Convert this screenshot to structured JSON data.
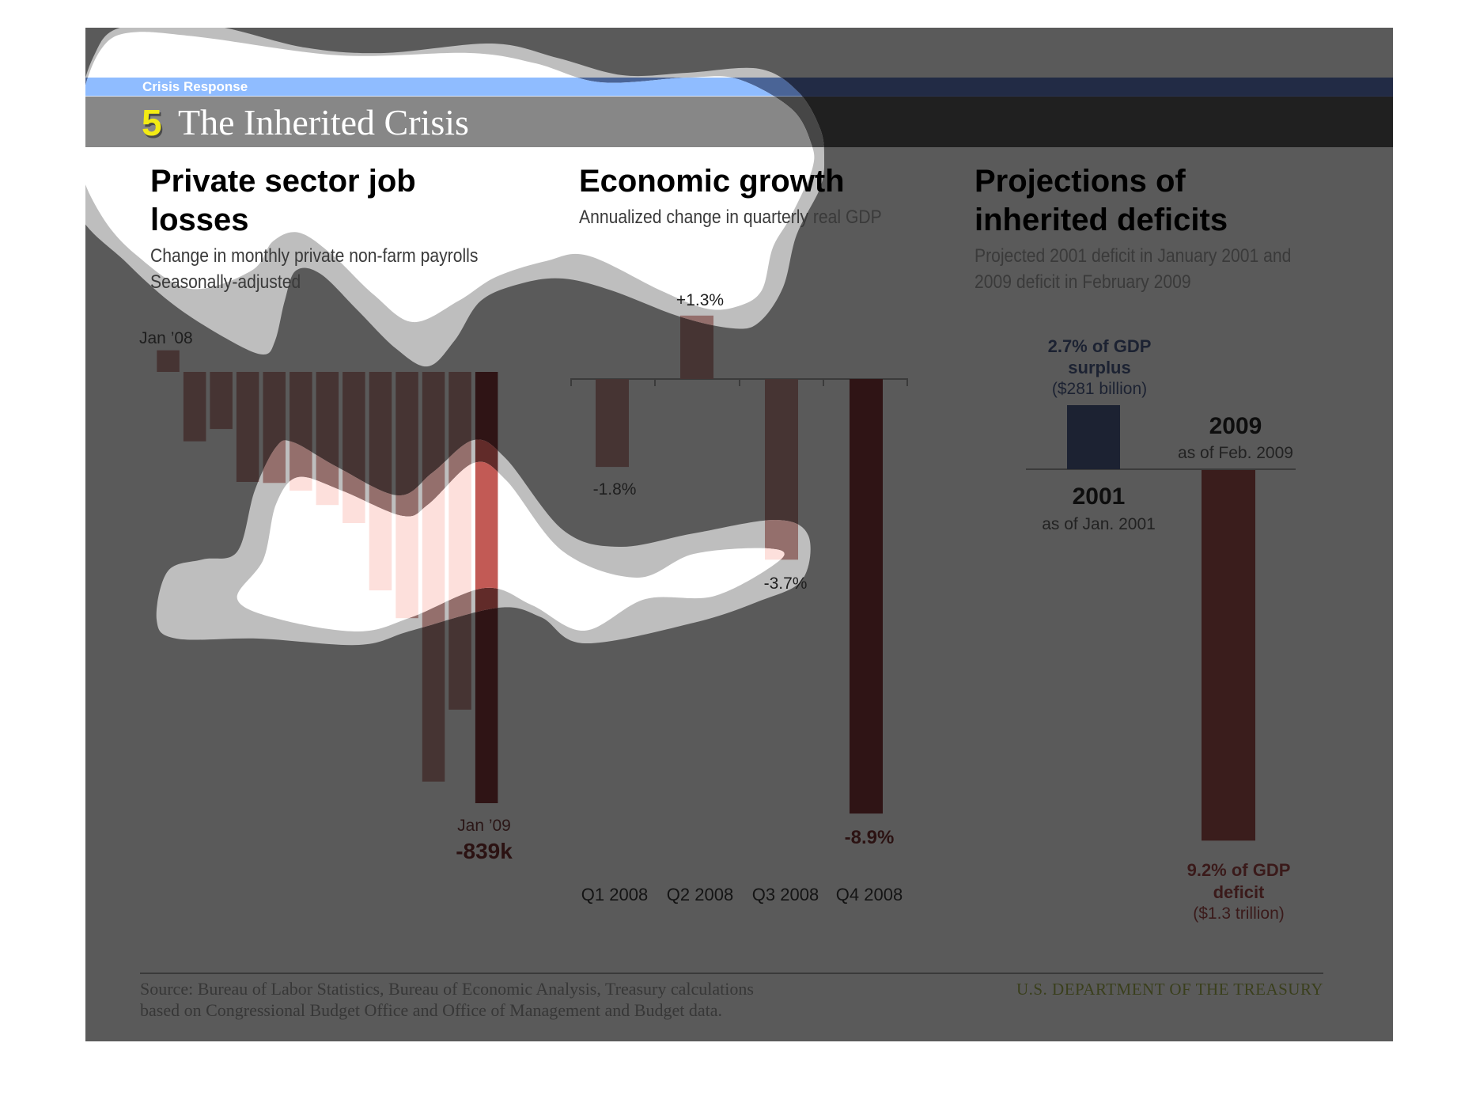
{
  "header": {
    "section_label": "Crisis Response",
    "slide_number": "5",
    "slide_title": "The Inherited Crisis"
  },
  "colors": {
    "panel": "#5a5a5a",
    "highlight": "#ffffff",
    "highlight_halo": "#bebebe",
    "section_band_bright": "#8fbcff",
    "section_band_dim": "#222b45",
    "title_band_dim": "#202020",
    "bar_dim": "#463433",
    "bar_final_dim": "#2f1415",
    "bar_bright": "#fde0dc",
    "bar_final_bright": "#c25a55",
    "surplus": "#1c2232",
    "deficit": "#3a1d1c",
    "number_accent": "#f3eb14"
  },
  "chart_data": [
    {
      "type": "bar",
      "title_lines": [
        "Private sector job",
        "losses"
      ],
      "subtitle_lines": [
        "Change in monthly private non-farm payrolls",
        "Seasonally-adjusted"
      ],
      "first_label": "Jan ’08",
      "last_label": "Jan ’09",
      "last_value_label": "-839k",
      "values": [
        42,
        -135,
        -111,
        -214,
        -216,
        -231,
        -259,
        -294,
        -425,
        -479,
        -797,
        -657,
        -839
      ],
      "highlight_index": 12,
      "grid": false
    },
    {
      "type": "bar",
      "title": "Economic growth",
      "subtitle": "Annualized change in quarterly real GDP",
      "categories": [
        "Q1 2008",
        "Q2 2008",
        "Q3 2008",
        "Q4 2008"
      ],
      "values": [
        -1.8,
        1.3,
        -3.7,
        -8.9
      ],
      "value_labels": [
        "-1.8%",
        "+1.3%",
        "-3.7%",
        "-8.9%"
      ],
      "highlight_index": 3,
      "grid": false
    },
    {
      "type": "bar",
      "title_lines": [
        "Projections of",
        "inherited deficits"
      ],
      "subtitle_lines": [
        "Projected 2001 deficit in January 2001 and",
        "2009 deficit in February 2009"
      ],
      "categories": [
        "2001",
        "2009"
      ],
      "category_captions": [
        "as of Jan. 2001",
        "as of Feb. 2009"
      ],
      "values": [
        2.7,
        -9.2
      ],
      "label_lines": [
        [
          "2.7% of GDP",
          "surplus",
          "($281 billion)"
        ],
        [
          "9.2% of GDP",
          "deficit",
          "($1.3 trillion)"
        ]
      ],
      "grid": false
    }
  ],
  "footer": {
    "source_lines": [
      "Source: Bureau of Labor Statistics, Bureau of Economic Analysis, Treasury calculations",
      "based on Congressional Budget Office and Office of Management and Budget data."
    ],
    "organization": "U.S. DEPARTMENT OF THE TREASURY"
  }
}
